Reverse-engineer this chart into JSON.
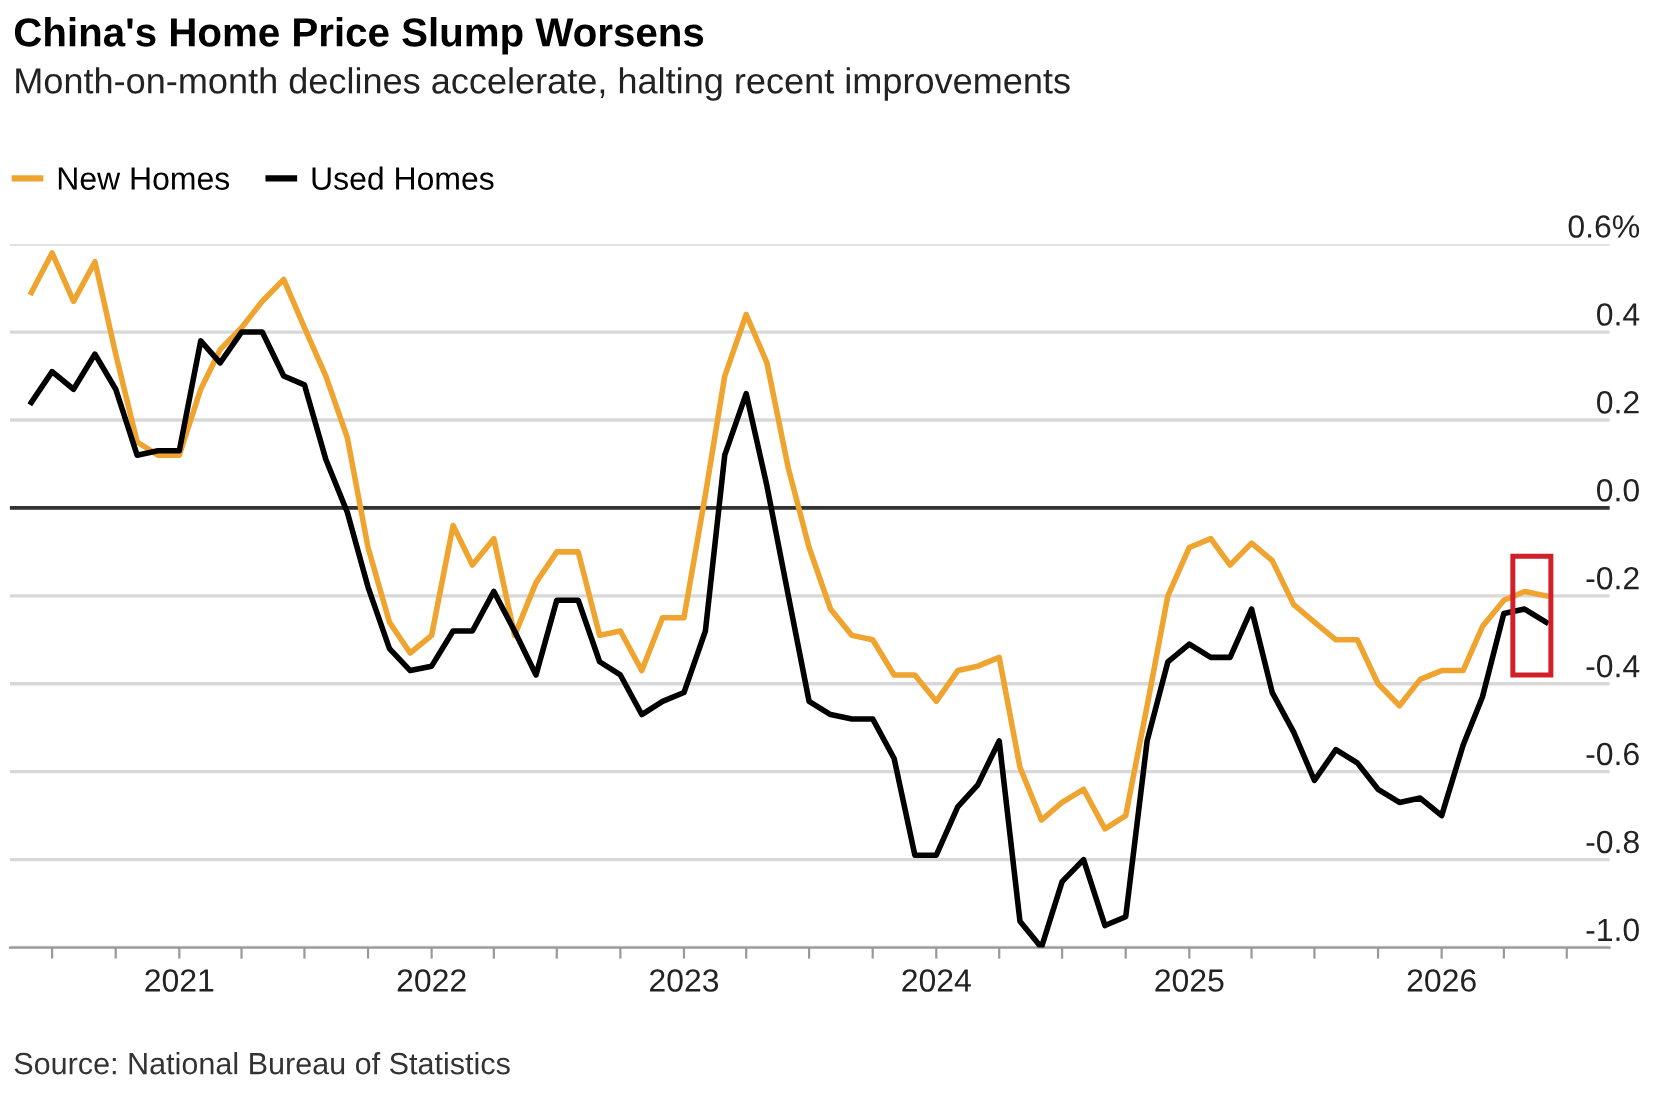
{
  "chart_data": {
    "type": "line",
    "title": "China's Home Price Slump Worsens",
    "subtitle": "Month-on-month declines accelerate, halting recent improvements",
    "annotations": [
      "Source: National Bureau of Statistics"
    ],
    "x": [
      "2020-06",
      "2020-07",
      "2020-08",
      "2020-09",
      "2020-10",
      "2020-11",
      "2020-12",
      "2021-01",
      "2021-02",
      "2021-03",
      "2021-04",
      "2021-05",
      "2021-06",
      "2021-07",
      "2021-08",
      "2021-09",
      "2021-10",
      "2021-11",
      "2021-12",
      "2022-01",
      "2022-02",
      "2022-03",
      "2022-04",
      "2022-05",
      "2022-06",
      "2022-07",
      "2022-08",
      "2022-09",
      "2022-10",
      "2022-11",
      "2022-12",
      "2023-01",
      "2023-02",
      "2023-03",
      "2023-04",
      "2023-05",
      "2023-06",
      "2023-07",
      "2023-08",
      "2023-09",
      "2023-10",
      "2023-11",
      "2023-12",
      "2024-01",
      "2024-02",
      "2024-03",
      "2024-04",
      "2024-05",
      "2024-06",
      "2024-07",
      "2024-08",
      "2024-09",
      "2024-10",
      "2024-11",
      "2024-12",
      "2025-01",
      "2025-02",
      "2025-03",
      "2025-04",
      "2025-05",
      "2025-06",
      "2025-07",
      "2025-08",
      "2025-09",
      "2025-10",
      "2025-11",
      "2025-12",
      "2026-01",
      "2026-02",
      "2026-03",
      "2026-04",
      "2026-05",
      "2026-06"
    ],
    "series": [
      {
        "name": "New Homes",
        "color": "#f0a430",
        "values": [
          0.49,
          0.58,
          0.47,
          0.56,
          0.35,
          0.15,
          0.12,
          0.12,
          0.27,
          0.36,
          0.41,
          0.47,
          0.52,
          0.41,
          0.3,
          0.16,
          -0.09,
          -0.26,
          -0.33,
          -0.29,
          -0.04,
          -0.13,
          -0.07,
          -0.29,
          -0.17,
          -0.1,
          -0.1,
          -0.29,
          -0.28,
          -0.37,
          -0.25,
          -0.25,
          0.03,
          0.3,
          0.44,
          0.33,
          0.09,
          -0.09,
          -0.23,
          -0.29,
          -0.3,
          -0.38,
          -0.38,
          -0.44,
          -0.37,
          -0.36,
          -0.34,
          -0.59,
          -0.71,
          -0.67,
          -0.64,
          -0.73,
          -0.7,
          -0.45,
          -0.2,
          -0.09,
          -0.07,
          -0.13,
          -0.08,
          -0.12,
          -0.22,
          -0.26,
          -0.3,
          -0.3,
          -0.4,
          -0.45,
          -0.39,
          -0.37,
          -0.37,
          -0.27,
          -0.21,
          -0.19,
          -0.2
        ]
      },
      {
        "name": "Used Homes",
        "color": "#000000",
        "values": [
          0.24,
          0.31,
          0.27,
          0.35,
          0.27,
          0.12,
          0.13,
          0.13,
          0.38,
          0.33,
          0.4,
          0.4,
          0.3,
          0.28,
          0.11,
          -0.01,
          -0.18,
          -0.32,
          -0.37,
          -0.36,
          -0.28,
          -0.28,
          -0.19,
          -0.28,
          -0.38,
          -0.21,
          -0.21,
          -0.35,
          -0.38,
          -0.47,
          -0.44,
          -0.42,
          -0.28,
          0.12,
          0.26,
          0.05,
          -0.2,
          -0.44,
          -0.47,
          -0.48,
          -0.48,
          -0.57,
          -0.79,
          -0.79,
          -0.68,
          -0.63,
          -0.53,
          -0.94,
          -1.0,
          -0.85,
          -0.8,
          -0.95,
          -0.93,
          -0.53,
          -0.35,
          -0.31,
          -0.34,
          -0.34,
          -0.23,
          -0.42,
          -0.51,
          -0.62,
          -0.55,
          -0.58,
          -0.64,
          -0.67,
          -0.66,
          -0.7,
          -0.54,
          -0.43,
          -0.24,
          -0.23,
          -0.26
        ]
      }
    ],
    "xlim": [
      "2020-05",
      "2026-09"
    ],
    "xticks": [
      {
        "value": "2020-07",
        "label": null
      },
      {
        "value": "2020-10",
        "label": null
      },
      {
        "value": "2021-01",
        "label": "2021"
      },
      {
        "value": "2021-04",
        "label": null
      },
      {
        "value": "2021-07",
        "label": null
      },
      {
        "value": "2021-10",
        "label": null
      },
      {
        "value": "2022-01",
        "label": "2022"
      },
      {
        "value": "2022-04",
        "label": null
      },
      {
        "value": "2022-07",
        "label": null
      },
      {
        "value": "2022-10",
        "label": null
      },
      {
        "value": "2023-01",
        "label": "2023"
      },
      {
        "value": "2023-04",
        "label": null
      },
      {
        "value": "2023-07",
        "label": null
      },
      {
        "value": "2023-10",
        "label": null
      },
      {
        "value": "2024-01",
        "label": "2024"
      },
      {
        "value": "2024-04",
        "label": null
      },
      {
        "value": "2024-07",
        "label": null
      },
      {
        "value": "2024-10",
        "label": null
      },
      {
        "value": "2025-01",
        "label": "2025"
      },
      {
        "value": "2025-04",
        "label": null
      },
      {
        "value": "2025-07",
        "label": null
      },
      {
        "value": "2025-10",
        "label": null
      },
      {
        "value": "2026-01",
        "label": "2026"
      },
      {
        "value": "2026-04",
        "label": null
      },
      {
        "value": "2026-07",
        "label": null
      }
    ],
    "ylim": [
      -1.0,
      0.6
    ],
    "yticks": [
      {
        "value": 0.6,
        "label": "0.6%"
      },
      0.4,
      0.2,
      {
        "value": 0,
        "label": "0.0"
      },
      -0.2,
      -0.4,
      -0.6,
      -0.8,
      {
        "value": -1.0,
        "label": "-1.0"
      }
    ],
    "ref_lines": [
      {
        "axis": "y",
        "value": 0,
        "color": "#333333"
      }
    ],
    "grid": "y",
    "legend": "top left",
    "marker": "none",
    "line_style": "solid"
  }
}
